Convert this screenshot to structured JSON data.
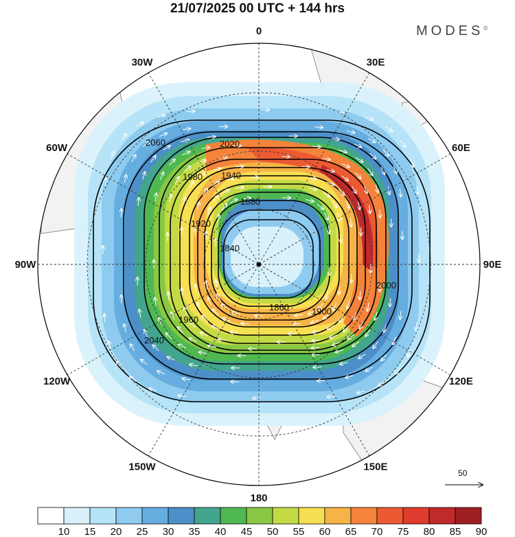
{
  "title": "21/07/2025  00 UTC  + 144 hrs",
  "brand": "MODES",
  "brand_mark": "©",
  "longitude_labels": [
    {
      "text": "0",
      "lon": 0
    },
    {
      "text": "30E",
      "lon": 30
    },
    {
      "text": "60E",
      "lon": 60
    },
    {
      "text": "90E",
      "lon": 90
    },
    {
      "text": "120E",
      "lon": 120
    },
    {
      "text": "150E",
      "lon": 150
    },
    {
      "text": "180",
      "lon": 180
    },
    {
      "text": "150W",
      "lon": -150
    },
    {
      "text": "120W",
      "lon": -120
    },
    {
      "text": "90W",
      "lon": -90
    },
    {
      "text": "60W",
      "lon": -60
    },
    {
      "text": "30W",
      "lon": -30
    }
  ],
  "contour_labels": [
    "2060",
    "2040",
    "2020",
    "2000",
    "1980",
    "1960",
    "1940",
    "1920",
    "1900",
    "1880",
    "1860",
    "1840"
  ],
  "reference_vector": {
    "label": "50"
  },
  "colorbar": {
    "ticks": [
      "10",
      "15",
      "20",
      "25",
      "30",
      "35",
      "40",
      "45",
      "50",
      "55",
      "60",
      "65",
      "70",
      "75",
      "80",
      "85",
      "90"
    ],
    "colors": [
      "#ffffff",
      "#d8f1fb",
      "#b6e3f7",
      "#8ecbef",
      "#66aee0",
      "#4d8fc9",
      "#43a58e",
      "#4fb850",
      "#88c844",
      "#c4da45",
      "#f7df52",
      "#f7b347",
      "#f4833b",
      "#ec5a33",
      "#dd3c2e",
      "#c02a2b",
      "#9e1f22"
    ]
  }
}
